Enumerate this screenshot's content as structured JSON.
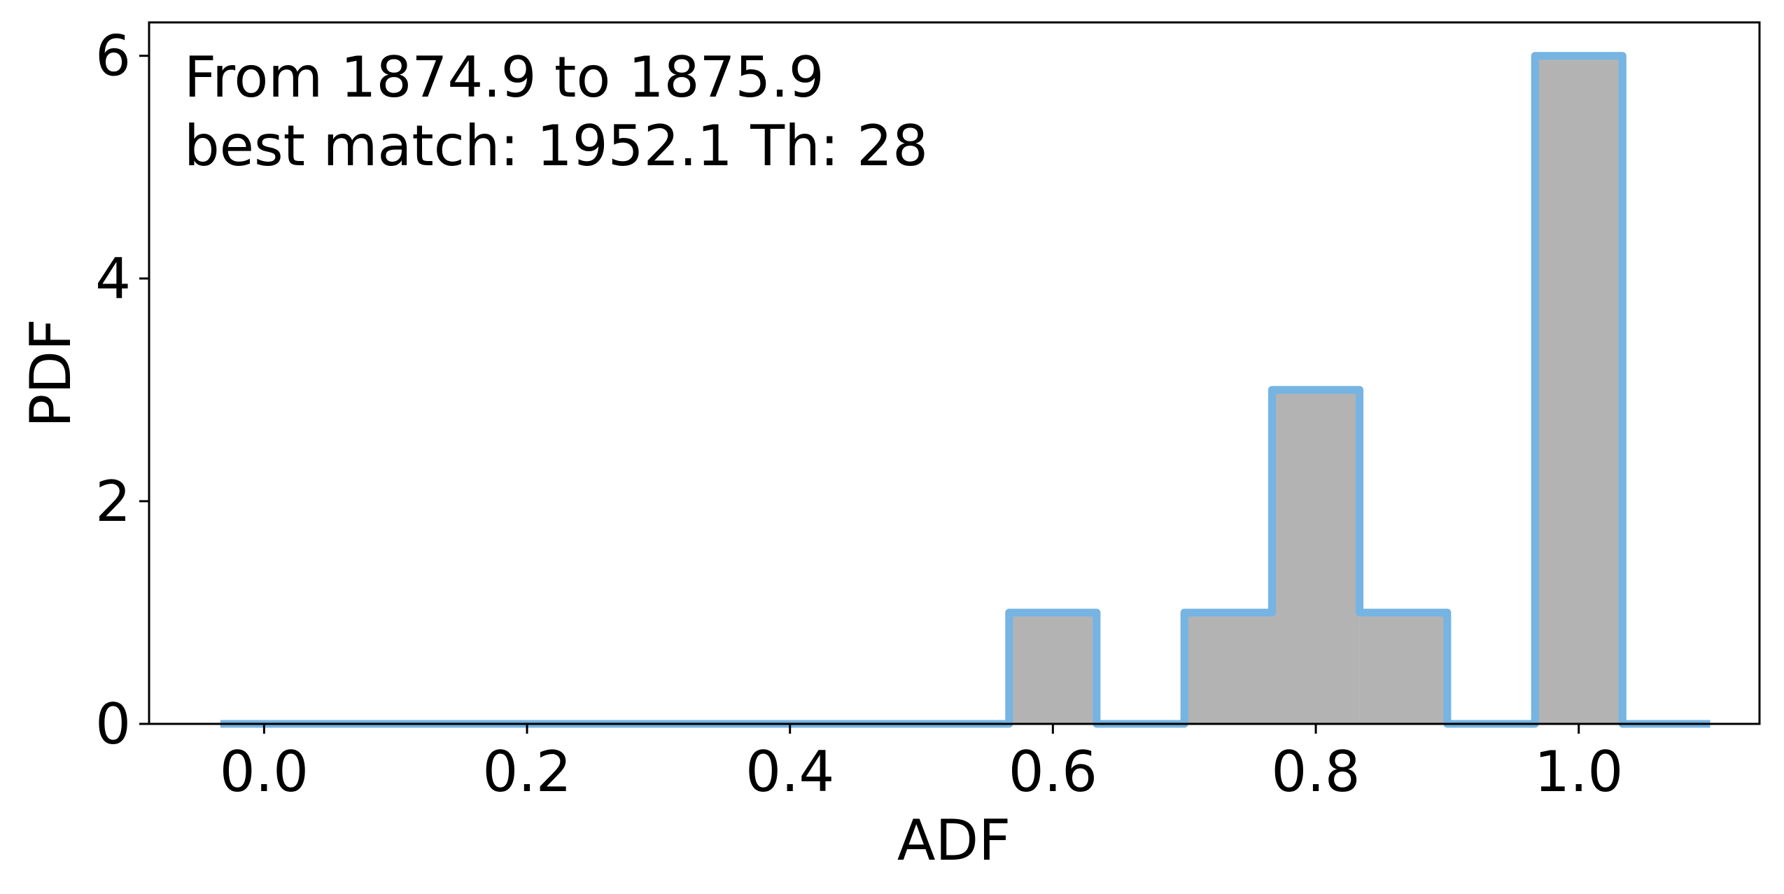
{
  "chart_data": {
    "type": "bar",
    "title": "",
    "xlabel": "ADF",
    "ylabel": "PDF",
    "annotations": [
      "From 1874.9 to 1875.9",
      "best match: 1952.1  Th: 28"
    ],
    "xlim": [
      -0.0875,
      1.1375
    ],
    "ylim": [
      0,
      6.3
    ],
    "x_ticks": [
      0.0,
      0.2,
      0.4,
      0.6,
      0.8,
      1.0
    ],
    "x_tick_labels": [
      "0.0",
      "0.2",
      "0.4",
      "0.6",
      "0.8",
      "1.0"
    ],
    "y_ticks": [
      0,
      2,
      4,
      6
    ],
    "y_tick_labels": [
      "0",
      "2",
      "4",
      "6"
    ],
    "bin_edges": [
      -0.0333,
      0.0333,
      0.1,
      0.1667,
      0.2333,
      0.3,
      0.3667,
      0.4333,
      0.5,
      0.5667,
      0.6333,
      0.7,
      0.7667,
      0.8333,
      0.9,
      0.9667,
      1.0333,
      1.1
    ],
    "values": [
      0,
      0,
      0,
      0,
      0,
      0,
      0,
      0,
      0,
      1,
      0,
      1,
      3,
      1,
      0,
      6,
      0
    ],
    "grid": false,
    "colors": {
      "fill": "#b3b3b3",
      "edge": "#75b4e3"
    }
  }
}
